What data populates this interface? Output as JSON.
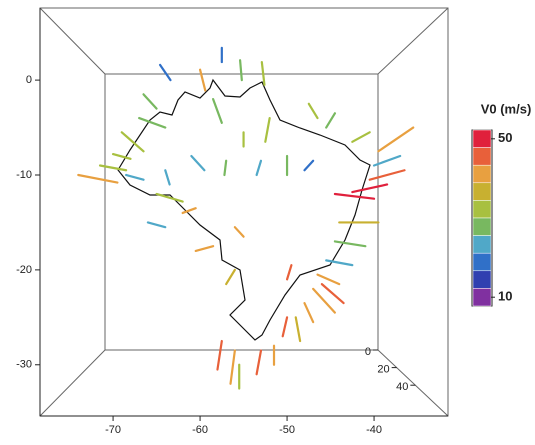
{
  "chart_data": {
    "type": "vector-map",
    "xlim": [
      -78.4,
      -31.5
    ],
    "ylim": [
      7.6,
      -35.4
    ],
    "xticks": [
      -70,
      -60,
      -50,
      -40
    ],
    "yticks": [
      0,
      -10,
      -20,
      -30
    ],
    "zlim": [
      0,
      75
    ],
    "zticks": [
      0,
      20,
      40
    ],
    "colorbar": {
      "title": "V0 (m/s)",
      "range": [
        10,
        50
      ],
      "ticks": [
        50,
        10
      ],
      "colors": [
        "#e0203c",
        "#e8603a",
        "#e8a040",
        "#c8b030",
        "#a8c040",
        "#78b860",
        "#50a8c8",
        "#3070c8",
        "#3040b0",
        "#8030a0"
      ]
    },
    "vectors": {
      "lon": [
        -64.6,
        -60.0,
        -57.5,
        -55.4,
        -52.9,
        -47.5,
        -44.5,
        -40.5,
        -35.5,
        -37.0,
        -36.5,
        -38.5,
        -40.0,
        -39.5,
        -41.0,
        -42.5,
        -44.0,
        -43.5,
        -44.5,
        -47.0,
        -48.5,
        -50.5,
        -51.5,
        -53.5,
        -56.5,
        -58.0,
        -55.5,
        -56.0,
        -58.5,
        -62.0,
        -65.0,
        -68.5,
        -74.0,
        -71.5,
        -70.0,
        -69.0,
        -64.0,
        -61.0,
        -57.0,
        -53.0,
        -50.0,
        -47.0,
        -58.5,
        -55.0,
        -52.0,
        -66.5,
        -67.0,
        -66.0,
        -56.0,
        -49.5
      ],
      "lat": [
        1.6,
        1.1,
        3.4,
        2.1,
        1.9,
        -2.5,
        -3.5,
        -5.5,
        -5.0,
        -8.0,
        -9.5,
        -11.0,
        -12.5,
        -15.0,
        -17.5,
        -19.5,
        -21.5,
        -23.5,
        -24.5,
        -25.5,
        -27.5,
        -27.0,
        -30.0,
        -31.0,
        -32.0,
        -30.5,
        -32.5,
        -20.0,
        -17.5,
        -14.0,
        -12.0,
        -10.0,
        -10.0,
        -9.0,
        -7.8,
        -5.5,
        -9.5,
        -8.0,
        -8.5,
        -8.5,
        -8.0,
        -8.5,
        -2.0,
        -5.5,
        -4.0,
        -1.5,
        -4.0,
        -15.0,
        -15.5,
        -19.5
      ],
      "lon_end": [
        -63.4,
        -59.4,
        -57.5,
        -55.2,
        -52.6,
        -46.5,
        -45.5,
        -42.5,
        -39.5,
        -40.0,
        -40.5,
        -42.5,
        -44.5,
        -44.0,
        -44.5,
        -45.5,
        -46.5,
        -46.0,
        -47.0,
        -48.0,
        -49.0,
        -50.0,
        -51.5,
        -53.0,
        -56.0,
        -57.5,
        -55.5,
        -57.0,
        -60.5,
        -60.5,
        -62.0,
        -66.5,
        -69.5,
        -68.5,
        -68.0,
        -66.5,
        -63.5,
        -59.5,
        -57.2,
        -53.5,
        -50.0,
        -48.0,
        -57.5,
        -55.0,
        -52.5,
        -65.0,
        -64.0,
        -64.0,
        -55.0,
        -50.0
      ],
      "lat_end": [
        0.0,
        -1.1,
        1.9,
        0.0,
        -0.5,
        -4.0,
        -5.0,
        -6.5,
        -7.5,
        -9.0,
        -10.5,
        -11.8,
        -12.0,
        -15.0,
        -17.0,
        -19.0,
        -20.5,
        -21.5,
        -22.0,
        -23.5,
        -25.0,
        -25.0,
        -28.0,
        -28.5,
        -28.5,
        -27.5,
        -30.0,
        -21.5,
        -18.0,
        -13.5,
        -12.8,
        -10.5,
        -10.8,
        -9.5,
        -8.3,
        -7.5,
        -11.0,
        -9.5,
        -10.0,
        -10.0,
        -10.0,
        -9.5,
        -4.5,
        -7.0,
        -6.5,
        -3.0,
        -5.0,
        -15.5,
        -16.5,
        -21.0
      ],
      "speed": [
        20,
        40,
        18,
        28,
        30,
        30,
        28,
        32,
        38,
        22,
        44,
        48,
        50,
        35,
        28,
        22,
        40,
        42,
        38,
        40,
        36,
        45,
        40,
        44,
        40,
        44,
        30,
        35,
        40,
        40,
        30,
        22,
        38,
        30,
        32,
        30,
        22,
        22,
        28,
        25,
        28,
        20,
        28,
        30,
        30,
        28,
        28,
        22,
        40,
        45
      ]
    }
  }
}
